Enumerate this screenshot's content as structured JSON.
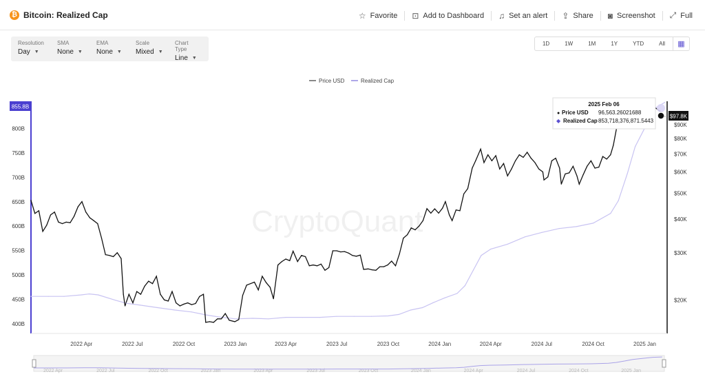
{
  "header": {
    "title": "Bitcoin: Realized Cap",
    "logo_glyph": "₿",
    "actions": [
      {
        "label": "Favorite",
        "icon": "☆"
      },
      {
        "label": "Add to Dashboard",
        "icon": "⊡"
      },
      {
        "label": "Set an alert",
        "icon": "♫"
      },
      {
        "label": "Share",
        "icon": "⇪"
      },
      {
        "label": "Screenshot",
        "icon": "◙"
      },
      {
        "label": "Full",
        "icon": "⤢"
      }
    ]
  },
  "controls": [
    {
      "label": "Resolution",
      "value": "Day"
    },
    {
      "label": "SMA",
      "value": "None"
    },
    {
      "label": "EMA",
      "value": "None"
    },
    {
      "label": "Scale",
      "value": "Mixed"
    },
    {
      "label": "Chart Type",
      "value": "Line"
    }
  ],
  "ranges": [
    "1D",
    "1W",
    "1M",
    "1Y",
    "YTD",
    "All"
  ],
  "watermark": "CryptoQuant",
  "navigator": {
    "labels": [
      "2022 Apr",
      "2022 Jul",
      "2022 Oct",
      "2023 Jan",
      "2023 Apr",
      "2023 Jul",
      "2023 Oct",
      "2024 Jan",
      "2024 Apr",
      "2024 Jul",
      "2024 Oct",
      "2025 Jan"
    ]
  },
  "tooltip": {
    "date": "2025 Feb 06",
    "rows": [
      {
        "name": "Price USD",
        "value": "96,563.26021688",
        "color": "#111111",
        "marker": "●"
      },
      {
        "name": "Realized Cap",
        "value": "853,718,376,871.5443",
        "color": "#5b4fd1",
        "marker": "◆"
      }
    ]
  },
  "colors": {
    "price": "#111111",
    "realized": "#c8c3f2",
    "accent": "#5b4fd1"
  },
  "chart_data": {
    "type": "line",
    "title": "",
    "legend": [
      "Price USD",
      "Realized Cap"
    ],
    "legend_position": "top-center",
    "x_ticks": [
      "2022 Apr",
      "2022 Jul",
      "2022 Oct",
      "2023 Jan",
      "2023 Apr",
      "2023 Jul",
      "2023 Oct",
      "2024 Jan",
      "2024 Apr",
      "2024 Jul",
      "2024 Oct",
      "2025 Jan"
    ],
    "x_range": [
      "2022-01-01",
      "2025-02-10"
    ],
    "left_axis": {
      "ticks": [
        "400B",
        "450B",
        "500B",
        "550B",
        "600B",
        "650B",
        "700B",
        "750B",
        "800B"
      ],
      "tick_values": [
        400,
        450,
        500,
        550,
        600,
        650,
        700,
        750,
        800
      ],
      "range": [
        380,
        855.8
      ],
      "unit": "B",
      "current_label": "855.8B"
    },
    "right_axis": {
      "ticks": [
        "$20K",
        "$30K",
        "$40K",
        "$50K",
        "$60K",
        "$70K",
        "$80K",
        "$90K"
      ],
      "tick_values": [
        20000,
        30000,
        40000,
        50000,
        60000,
        70000,
        80000,
        90000
      ],
      "scale": "log",
      "range": [
        15000,
        110000
      ],
      "current_label": "$97.8K"
    },
    "grid": false,
    "series": [
      {
        "name": "Price USD",
        "axis": "right",
        "points": [
          [
            "2022-01-01",
            47000
          ],
          [
            "2022-01-08",
            42000
          ],
          [
            "2022-01-15",
            43000
          ],
          [
            "2022-01-22",
            36000
          ],
          [
            "2022-01-29",
            38000
          ],
          [
            "2022-02-05",
            41500
          ],
          [
            "2022-02-12",
            42500
          ],
          [
            "2022-02-19",
            39000
          ],
          [
            "2022-02-26",
            38500
          ],
          [
            "2022-03-05",
            39000
          ],
          [
            "2022-03-12",
            38800
          ],
          [
            "2022-03-19",
            41000
          ],
          [
            "2022-03-26",
            44500
          ],
          [
            "2022-04-02",
            46500
          ],
          [
            "2022-04-09",
            42500
          ],
          [
            "2022-04-16",
            40500
          ],
          [
            "2022-04-23",
            39500
          ],
          [
            "2022-04-30",
            38500
          ],
          [
            "2022-05-07",
            34000
          ],
          [
            "2022-05-14",
            29500
          ],
          [
            "2022-05-21",
            29300
          ],
          [
            "2022-05-28",
            29000
          ],
          [
            "2022-06-04",
            30000
          ],
          [
            "2022-06-11",
            28500
          ],
          [
            "2022-06-15",
            21000
          ],
          [
            "2022-06-18",
            19000
          ],
          [
            "2022-06-25",
            21000
          ],
          [
            "2022-07-02",
            19500
          ],
          [
            "2022-07-09",
            21500
          ],
          [
            "2022-07-16",
            21000
          ],
          [
            "2022-07-23",
            22500
          ],
          [
            "2022-07-30",
            23500
          ],
          [
            "2022-08-06",
            23000
          ],
          [
            "2022-08-13",
            24500
          ],
          [
            "2022-08-20",
            21000
          ],
          [
            "2022-08-27",
            20000
          ],
          [
            "2022-09-03",
            19800
          ],
          [
            "2022-09-10",
            21500
          ],
          [
            "2022-09-17",
            19500
          ],
          [
            "2022-09-24",
            19000
          ],
          [
            "2022-10-01",
            19300
          ],
          [
            "2022-10-08",
            19500
          ],
          [
            "2022-10-15",
            19200
          ],
          [
            "2022-10-22",
            19400
          ],
          [
            "2022-10-29",
            20600
          ],
          [
            "2022-11-05",
            21000
          ],
          [
            "2022-11-09",
            16500
          ],
          [
            "2022-11-16",
            16600
          ],
          [
            "2022-11-23",
            16500
          ],
          [
            "2022-11-30",
            17000
          ],
          [
            "2022-12-07",
            17000
          ],
          [
            "2022-12-14",
            17800
          ],
          [
            "2022-12-21",
            16800
          ],
          [
            "2022-12-31",
            16600
          ],
          [
            "2023-01-07",
            16900
          ],
          [
            "2023-01-14",
            20800
          ],
          [
            "2023-01-21",
            22700
          ],
          [
            "2023-01-28",
            23000
          ],
          [
            "2023-02-04",
            23300
          ],
          [
            "2023-02-11",
            21800
          ],
          [
            "2023-02-18",
            24500
          ],
          [
            "2023-02-25",
            23200
          ],
          [
            "2023-03-04",
            22300
          ],
          [
            "2023-03-10",
            20200
          ],
          [
            "2023-03-18",
            27000
          ],
          [
            "2023-03-25",
            27800
          ],
          [
            "2023-04-01",
            28400
          ],
          [
            "2023-04-08",
            28000
          ],
          [
            "2023-04-14",
            30400
          ],
          [
            "2023-04-22",
            27800
          ],
          [
            "2023-04-29",
            29300
          ],
          [
            "2023-05-06",
            29000
          ],
          [
            "2023-05-13",
            26800
          ],
          [
            "2023-05-20",
            27000
          ],
          [
            "2023-05-27",
            26800
          ],
          [
            "2023-06-03",
            27200
          ],
          [
            "2023-06-10",
            25800
          ],
          [
            "2023-06-17",
            26400
          ],
          [
            "2023-06-24",
            30500
          ],
          [
            "2023-07-01",
            30500
          ],
          [
            "2023-07-08",
            30200
          ],
          [
            "2023-07-15",
            30300
          ],
          [
            "2023-07-22",
            29900
          ],
          [
            "2023-07-29",
            29300
          ],
          [
            "2023-08-05",
            29100
          ],
          [
            "2023-08-12",
            29400
          ],
          [
            "2023-08-18",
            26000
          ],
          [
            "2023-08-26",
            26100
          ],
          [
            "2023-09-02",
            25900
          ],
          [
            "2023-09-09",
            25800
          ],
          [
            "2023-09-16",
            26600
          ],
          [
            "2023-09-23",
            26600
          ],
          [
            "2023-09-30",
            27000
          ],
          [
            "2023-10-07",
            27900
          ],
          [
            "2023-10-14",
            26800
          ],
          [
            "2023-10-21",
            29700
          ],
          [
            "2023-10-28",
            34000
          ],
          [
            "2023-11-04",
            35000
          ],
          [
            "2023-11-11",
            37100
          ],
          [
            "2023-11-18",
            36500
          ],
          [
            "2023-11-25",
            37700
          ],
          [
            "2023-12-02",
            39500
          ],
          [
            "2023-12-09",
            43800
          ],
          [
            "2023-12-16",
            42100
          ],
          [
            "2023-12-23",
            43700
          ],
          [
            "2023-12-30",
            42100
          ],
          [
            "2024-01-06",
            44000
          ],
          [
            "2024-01-11",
            46500
          ],
          [
            "2024-01-18",
            41500
          ],
          [
            "2024-01-23",
            39500
          ],
          [
            "2024-01-30",
            43300
          ],
          [
            "2024-02-06",
            43000
          ],
          [
            "2024-02-13",
            49700
          ],
          [
            "2024-02-20",
            52000
          ],
          [
            "2024-02-28",
            62000
          ],
          [
            "2024-03-05",
            66000
          ],
          [
            "2024-03-14",
            73000
          ],
          [
            "2024-03-20",
            65000
          ],
          [
            "2024-03-27",
            69500
          ],
          [
            "2024-04-03",
            66000
          ],
          [
            "2024-04-10",
            69000
          ],
          [
            "2024-04-17",
            61500
          ],
          [
            "2024-04-24",
            64500
          ],
          [
            "2024-05-01",
            58000
          ],
          [
            "2024-05-08",
            61500
          ],
          [
            "2024-05-15",
            66000
          ],
          [
            "2024-05-22",
            69500
          ],
          [
            "2024-05-29",
            68000
          ],
          [
            "2024-06-05",
            71000
          ],
          [
            "2024-06-12",
            67500
          ],
          [
            "2024-06-19",
            65000
          ],
          [
            "2024-06-26",
            61500
          ],
          [
            "2024-07-03",
            60000
          ],
          [
            "2024-07-05",
            56000
          ],
          [
            "2024-07-12",
            57500
          ],
          [
            "2024-07-19",
            66000
          ],
          [
            "2024-07-26",
            67500
          ],
          [
            "2024-08-02",
            62000
          ],
          [
            "2024-08-05",
            54000
          ],
          [
            "2024-08-12",
            59000
          ],
          [
            "2024-08-19",
            59500
          ],
          [
            "2024-08-26",
            63000
          ],
          [
            "2024-09-02",
            58000
          ],
          [
            "2024-09-06",
            54000
          ],
          [
            "2024-09-13",
            58500
          ],
          [
            "2024-09-20",
            63000
          ],
          [
            "2024-09-27",
            66000
          ],
          [
            "2024-10-04",
            62000
          ],
          [
            "2024-10-11",
            62500
          ],
          [
            "2024-10-18",
            68500
          ],
          [
            "2024-10-25",
            67000
          ],
          [
            "2024-11-01",
            69500
          ],
          [
            "2024-11-06",
            75500
          ],
          [
            "2024-11-12",
            88000
          ],
          [
            "2024-11-20",
            94000
          ],
          [
            "2024-11-27",
            96000
          ],
          [
            "2024-12-05",
            98500
          ],
          [
            "2024-12-12",
            101000
          ],
          [
            "2024-12-17",
            106000
          ],
          [
            "2024-12-24",
            94500
          ],
          [
            "2024-12-31",
            93500
          ],
          [
            "2025-01-07",
            97000
          ],
          [
            "2025-01-13",
            94500
          ],
          [
            "2025-01-20",
            104000
          ],
          [
            "2025-01-27",
            101500
          ],
          [
            "2025-02-01",
            100000
          ],
          [
            "2025-02-03",
            97000
          ],
          [
            "2025-02-06",
            96563
          ]
        ]
      },
      {
        "name": "Realized Cap",
        "axis": "left",
        "points": [
          [
            "2022-01-01",
            456
          ],
          [
            "2022-02-01",
            456
          ],
          [
            "2022-03-01",
            456
          ],
          [
            "2022-04-01",
            459
          ],
          [
            "2022-04-15",
            461
          ],
          [
            "2022-05-01",
            459
          ],
          [
            "2022-06-01",
            448
          ],
          [
            "2022-06-20",
            442
          ],
          [
            "2022-07-15",
            438
          ],
          [
            "2022-08-15",
            433
          ],
          [
            "2022-09-15",
            428
          ],
          [
            "2022-10-15",
            424
          ],
          [
            "2022-11-10",
            418
          ],
          [
            "2022-12-01",
            414
          ],
          [
            "2023-01-01",
            410
          ],
          [
            "2023-02-01",
            411
          ],
          [
            "2023-03-01",
            410
          ],
          [
            "2023-04-01",
            413
          ],
          [
            "2023-05-01",
            413
          ],
          [
            "2023-06-01",
            413
          ],
          [
            "2023-07-01",
            415
          ],
          [
            "2023-08-01",
            415
          ],
          [
            "2023-09-01",
            415
          ],
          [
            "2023-10-01",
            416
          ],
          [
            "2023-10-20",
            419
          ],
          [
            "2023-11-10",
            428
          ],
          [
            "2023-12-01",
            433
          ],
          [
            "2023-12-20",
            443
          ],
          [
            "2024-01-10",
            453
          ],
          [
            "2024-02-01",
            462
          ],
          [
            "2024-02-15",
            478
          ],
          [
            "2024-03-01",
            510
          ],
          [
            "2024-03-15",
            540
          ],
          [
            "2024-04-01",
            553
          ],
          [
            "2024-05-01",
            563
          ],
          [
            "2024-06-01",
            578
          ],
          [
            "2024-07-01",
            587
          ],
          [
            "2024-08-01",
            595
          ],
          [
            "2024-09-01",
            599
          ],
          [
            "2024-10-01",
            606
          ],
          [
            "2024-11-01",
            626
          ],
          [
            "2024-11-15",
            652
          ],
          [
            "2024-12-01",
            708
          ],
          [
            "2024-12-15",
            763
          ],
          [
            "2025-01-01",
            801
          ],
          [
            "2025-01-20",
            842
          ],
          [
            "2025-02-06",
            853.7
          ]
        ]
      }
    ]
  }
}
